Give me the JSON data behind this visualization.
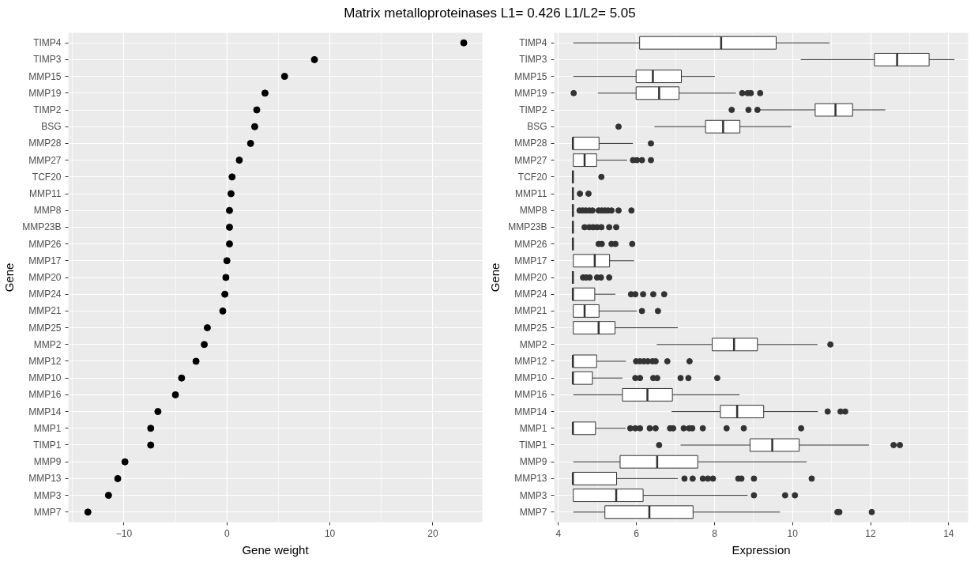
{
  "chart_data": [
    {
      "type": "scatter",
      "title": "Matrix metalloproteinases L1= 0.426 L1/L2= 5.05",
      "orientation": "horizontal",
      "xlabel": "Gene weight",
      "ylabel": "Gene",
      "marker": "circle",
      "grid": true,
      "categories": [
        "TIMP4",
        "TIMP3",
        "MMP15",
        "MMP19",
        "TIMP2",
        "BSG",
        "MMP28",
        "MMP27",
        "TCF20",
        "MMP11",
        "MMP8",
        "MMP23B",
        "MMP26",
        "MMP17",
        "MMP20",
        "MMP24",
        "MMP21",
        "MMP25",
        "MMP2",
        "MMP12",
        "MMP10",
        "MMP16",
        "MMP14",
        "MMP1",
        "TIMP1",
        "MMP9",
        "MMP13",
        "MMP3",
        "MMP7"
      ],
      "series": [
        {
          "color": "#000000",
          "values": [
            23.0,
            8.5,
            5.6,
            3.7,
            2.9,
            2.7,
            2.3,
            1.2,
            0.5,
            0.4,
            0.25,
            0.25,
            0.25,
            0.0,
            -0.1,
            -0.2,
            -0.4,
            -1.9,
            -2.2,
            -3.0,
            -4.4,
            -5.0,
            -6.7,
            -7.4,
            -7.4,
            -9.9,
            -10.6,
            -11.5,
            -13.5
          ]
        }
      ],
      "xlim": [
        -15.4,
        24.8
      ],
      "xticks": [
        -10,
        0,
        10,
        20
      ]
    },
    {
      "type": "box",
      "orientation": "horizontal",
      "xlabel": "Expression",
      "ylabel": "Gene",
      "grid": true,
      "categories": [
        "TIMP4",
        "TIMP3",
        "MMP15",
        "MMP19",
        "TIMP2",
        "BSG",
        "MMP28",
        "MMP27",
        "TCF20",
        "MMP11",
        "MMP8",
        "MMP23B",
        "MMP26",
        "MMP17",
        "MMP20",
        "MMP24",
        "MMP21",
        "MMP25",
        "MMP2",
        "MMP12",
        "MMP10",
        "MMP16",
        "MMP14",
        "MMP1",
        "TIMP1",
        "MMP9",
        "MMP13",
        "MMP3",
        "MMP7"
      ],
      "series": [
        {
          "color": "#333333",
          "boxes": [
            {
              "low": 4.38,
              "q1": 6.08,
              "median": 8.17,
              "q3": 9.58,
              "high": 10.95
            },
            {
              "low": 10.21,
              "q1": 12.1,
              "median": 12.68,
              "q3": 13.5,
              "high": 14.15
            },
            {
              "low": 4.38,
              "q1": 5.99,
              "median": 6.42,
              "q3": 7.15,
              "high": 8.01
            },
            {
              "low": 5.01,
              "q1": 5.99,
              "median": 6.58,
              "q3": 7.09,
              "high": 8.55,
              "outliers": [
                4.39,
                8.71,
                8.85,
                8.93,
                9.17
              ]
            },
            {
              "low": 9.13,
              "q1": 10.58,
              "median": 11.1,
              "q3": 11.54,
              "high": 12.38,
              "outliers": [
                8.44,
                8.87,
                9.1
              ]
            },
            {
              "low": 6.46,
              "q1": 7.77,
              "median": 8.22,
              "q3": 8.65,
              "high": 9.97,
              "outliers": [
                5.54
              ]
            },
            {
              "low": 4.37,
              "q1": 4.37,
              "median": 4.37,
              "q3": 5.04,
              "high": 5.91,
              "outliers": [
                6.37
              ]
            },
            {
              "low": 4.38,
              "q1": 4.38,
              "median": 4.67,
              "q3": 4.98,
              "high": 5.76,
              "outliers": [
                5.91,
                6.01,
                6.14,
                6.37
              ]
            },
            {
              "low": 4.37,
              "q1": 4.37,
              "median": 4.37,
              "q3": 4.37,
              "high": 4.37,
              "outliers": [
                5.1
              ]
            },
            {
              "low": 4.37,
              "q1": 4.37,
              "median": 4.37,
              "q3": 4.37,
              "high": 4.37,
              "outliers": [
                4.55,
                4.77
              ]
            },
            {
              "low": 4.37,
              "q1": 4.37,
              "median": 4.37,
              "q3": 4.37,
              "high": 4.37,
              "outliers": [
                4.54,
                4.62,
                4.7,
                4.79,
                4.87,
                5.03,
                5.11,
                5.19,
                5.27,
                5.36,
                5.54,
                5.87
              ]
            },
            {
              "low": 4.37,
              "q1": 4.37,
              "median": 4.37,
              "q3": 4.37,
              "high": 4.37,
              "outliers": [
                4.67,
                4.79,
                4.89,
                4.99,
                5.1,
                5.3,
                5.48
              ]
            },
            {
              "low": 4.37,
              "q1": 4.37,
              "median": 4.37,
              "q3": 4.37,
              "high": 4.37,
              "outliers": [
                5.03,
                5.11,
                5.36,
                5.46,
                5.89
              ]
            },
            {
              "low": 4.38,
              "q1": 4.38,
              "median": 4.93,
              "q3": 5.31,
              "high": 5.94
            },
            {
              "low": 4.37,
              "q1": 4.37,
              "median": 4.37,
              "q3": 4.37,
              "high": 4.37,
              "outliers": [
                4.63,
                4.71,
                4.8,
                4.99,
                5.09,
                5.3
              ]
            },
            {
              "low": 4.37,
              "q1": 4.37,
              "median": 4.37,
              "q3": 4.93,
              "high": 5.46,
              "outliers": [
                5.86,
                5.97,
                6.17,
                6.43,
                6.71
              ]
            },
            {
              "low": 4.38,
              "q1": 4.38,
              "median": 4.67,
              "q3": 5.04,
              "high": 6.01,
              "outliers": [
                6.14,
                6.55
              ]
            },
            {
              "low": 4.38,
              "q1": 4.38,
              "median": 5.03,
              "q3": 5.45,
              "high": 7.06
            },
            {
              "low": 6.52,
              "q1": 7.94,
              "median": 8.5,
              "q3": 9.1,
              "high": 10.64,
              "outliers": [
                10.97
              ]
            },
            {
              "low": 4.37,
              "q1": 4.37,
              "median": 4.37,
              "q3": 4.98,
              "high": 5.73,
              "outliers": [
                5.99,
                6.09,
                6.19,
                6.29,
                6.41,
                6.49,
                6.79,
                7.36
              ]
            },
            {
              "low": 4.37,
              "q1": 4.37,
              "median": 4.37,
              "q3": 4.87,
              "high": 5.64,
              "outliers": [
                5.97,
                6.09,
                6.43,
                6.53,
                7.13,
                7.33,
                8.07
              ]
            },
            {
              "low": 4.38,
              "q1": 5.64,
              "median": 6.28,
              "q3": 6.92,
              "high": 8.64
            },
            {
              "low": 6.9,
              "q1": 8.15,
              "median": 8.58,
              "q3": 9.26,
              "high": 10.65,
              "outliers": [
                10.9,
                11.23,
                11.35
              ]
            },
            {
              "low": 4.37,
              "q1": 4.37,
              "median": 4.37,
              "q3": 4.95,
              "high": 5.72,
              "outliers": [
                5.84,
                5.97,
                6.09,
                6.34,
                6.49,
                6.86,
                6.94,
                7.21,
                7.35,
                7.43,
                7.7,
                8.31,
                8.75,
                10.22
              ]
            },
            {
              "low": 7.13,
              "q1": 8.91,
              "median": 9.48,
              "q3": 10.17,
              "high": 11.96,
              "outliers": [
                6.58,
                12.59,
                12.75
              ]
            },
            {
              "low": 4.38,
              "q1": 5.58,
              "median": 6.53,
              "q3": 7.57,
              "high": 10.36
            },
            {
              "low": 4.37,
              "q1": 4.37,
              "median": 4.37,
              "q3": 5.49,
              "high": 7.06,
              "outliers": [
                7.23,
                7.44,
                7.7,
                7.83,
                7.96,
                8.61,
                8.69,
                9.01,
                10.49
              ]
            },
            {
              "low": 4.38,
              "q1": 4.38,
              "median": 5.48,
              "q3": 6.17,
              "high": 8.85,
              "outliers": [
                9.01,
                9.81,
                10.06
              ]
            },
            {
              "low": 4.38,
              "q1": 5.19,
              "median": 6.33,
              "q3": 7.45,
              "high": 9.68,
              "outliers": [
                11.15,
                11.2,
                12.03
              ]
            }
          ]
        }
      ],
      "xlim": [
        3.89,
        14.5
      ],
      "xticks": [
        4,
        6,
        8,
        10,
        12,
        14
      ]
    }
  ]
}
